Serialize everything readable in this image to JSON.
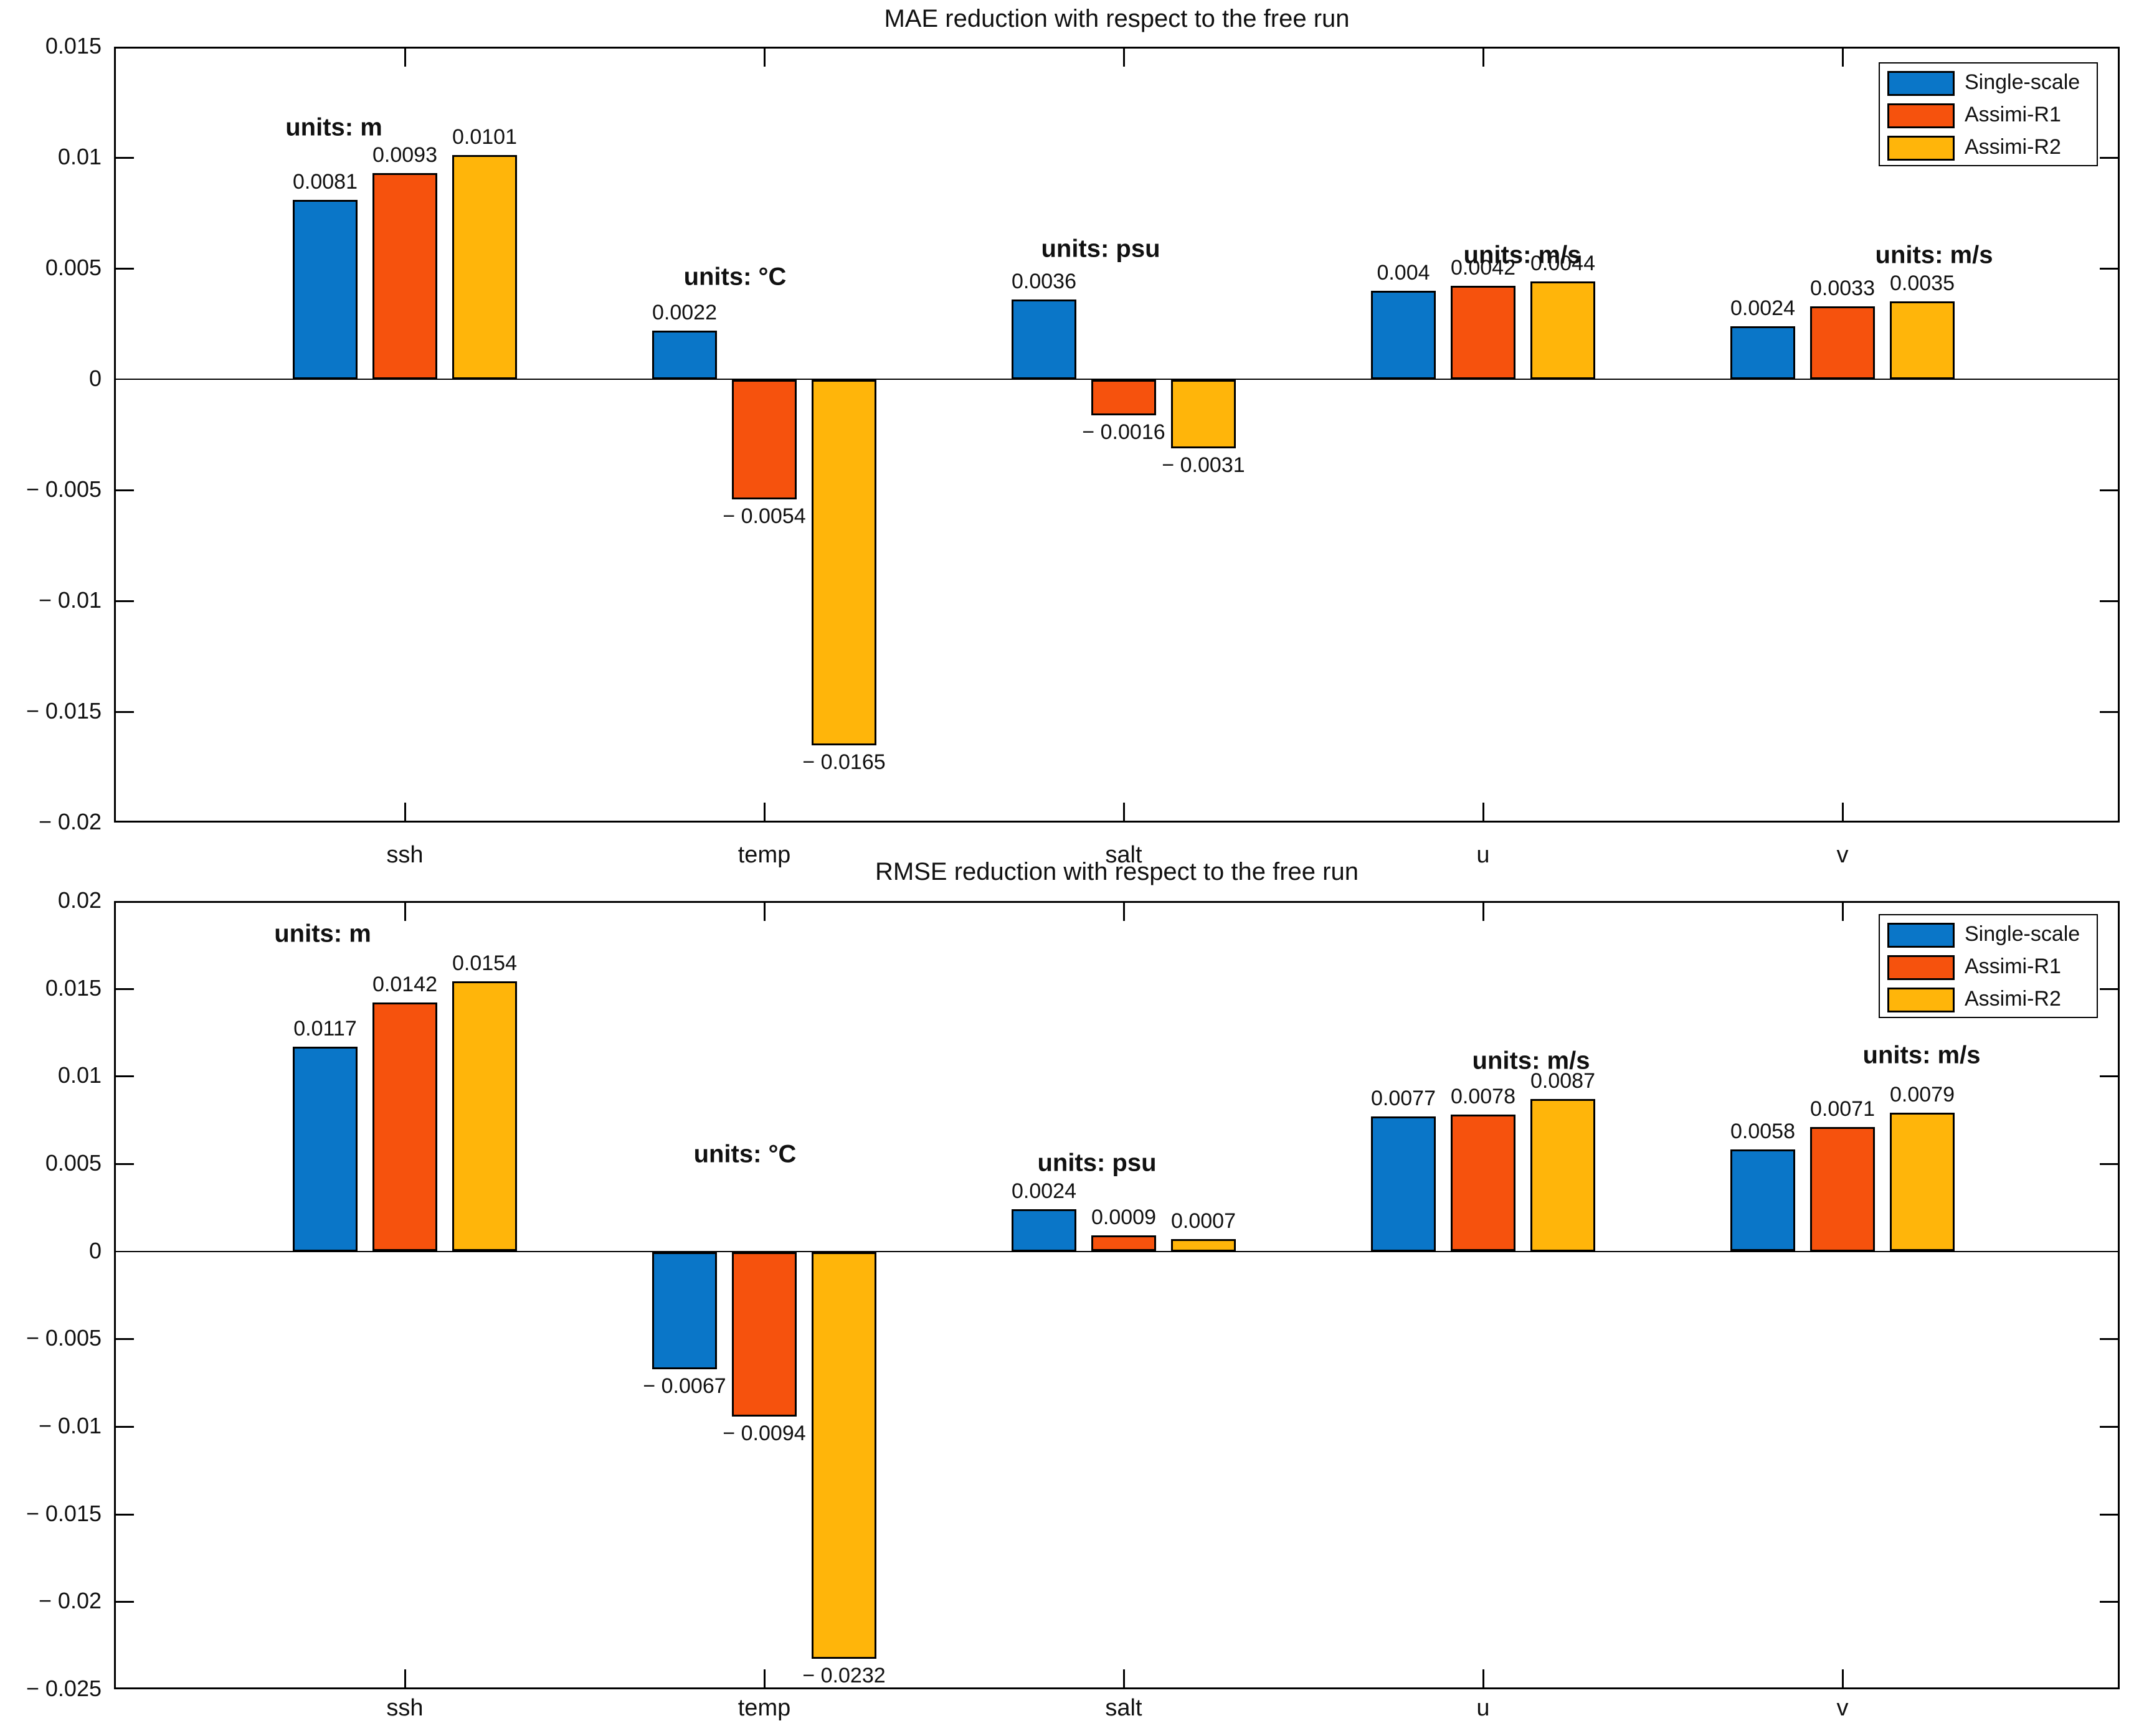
{
  "figure": {
    "background": "#ffffff"
  },
  "chart_data": [
    {
      "type": "bar",
      "title": "MAE reduction with respect to the free run",
      "categories": [
        "ssh",
        "temp",
        "salt",
        "u",
        "v"
      ],
      "series": [
        {
          "name": "Single-scale",
          "color": "#0a76c8",
          "values": [
            0.0081,
            0.0022,
            0.0036,
            0.004,
            0.0024
          ]
        },
        {
          "name": "Assimi-R1",
          "color": "#f6520d",
          "values": [
            0.0093,
            -0.0054,
            -0.0016,
            0.0042,
            0.0033
          ]
        },
        {
          "name": "Assimi-R2",
          "color": "#ffb50a",
          "values": [
            0.0101,
            -0.0165,
            -0.0031,
            0.0044,
            0.0035
          ]
        }
      ],
      "unit_annotations": [
        "units: m",
        "units: °C",
        "units: psu",
        "units: m/s",
        "units: m/s"
      ],
      "ylim": [
        -0.02,
        0.015
      ],
      "ytick_step": 0.005,
      "grid": false,
      "legend_position": "top-right"
    },
    {
      "type": "bar",
      "title": "RMSE reduction with respect to the free run",
      "categories": [
        "ssh",
        "temp",
        "salt",
        "u",
        "v"
      ],
      "series": [
        {
          "name": "Single-scale",
          "color": "#0a76c8",
          "values": [
            0.0117,
            -0.0067,
            0.0024,
            0.0077,
            0.0058
          ]
        },
        {
          "name": "Assimi-R1",
          "color": "#f6520d",
          "values": [
            0.0142,
            -0.0094,
            0.0009,
            0.0078,
            0.0071
          ]
        },
        {
          "name": "Assimi-R2",
          "color": "#ffb50a",
          "values": [
            0.0154,
            -0.0232,
            0.0007,
            0.0087,
            0.0079
          ]
        }
      ],
      "unit_annotations": [
        "units: m",
        "units: °C",
        "units: psu",
        "units: m/s",
        "units: m/s"
      ],
      "ylim": [
        -0.025,
        0.02
      ],
      "ytick_step": 0.005,
      "grid": false,
      "legend_position": "top-right"
    }
  ]
}
